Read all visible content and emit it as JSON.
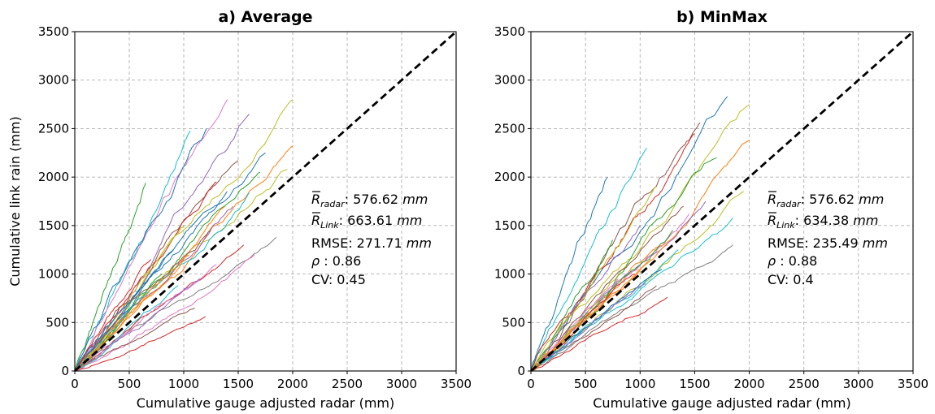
{
  "chart_data": [
    {
      "type": "line",
      "title": "a) Average",
      "xlabel": "Cumulative gauge adjusted radar (mm)",
      "ylabel": "Cumulative link rain (mm)",
      "xlim": [
        0,
        3500
      ],
      "ylim": [
        0,
        3500
      ],
      "xticks": [
        "0",
        "500",
        "1000",
        "1500",
        "2000",
        "2500",
        "3000",
        "3500"
      ],
      "yticks": [
        "0",
        "500",
        "1000",
        "1500",
        "2000",
        "2500",
        "3000",
        "3500"
      ],
      "grid": true,
      "reference_line": {
        "x": [
          0,
          3500
        ],
        "y": [
          0,
          3500
        ],
        "style": "dashed",
        "color": "#000000"
      },
      "annotations": {
        "r_radar": {
          "symbol": "R",
          "sub": "radar",
          "value": ": 576.62 ",
          "unit": "mm"
        },
        "r_link": {
          "symbol": "R",
          "sub": "Link",
          "value": ": 663.61 ",
          "unit": "mm"
        },
        "rmse": {
          "text": "RMSE: 271.71 ",
          "unit": "mm"
        },
        "rho": {
          "symbol": "ρ",
          "text": " : 0.86"
        },
        "cv": "CV: 0.45"
      },
      "series": [
        {
          "end": [
            1060,
            2480
          ],
          "color": "#17becf"
        },
        {
          "end": [
            1400,
            2800
          ],
          "color": "#e377c2"
        },
        {
          "end": [
            1210,
            2500
          ],
          "color": "#1f77b4"
        },
        {
          "end": [
            1600,
            2650
          ],
          "color": "#9467bd"
        },
        {
          "end": [
            2000,
            2800
          ],
          "color": "#bcbd22"
        },
        {
          "end": [
            1750,
            2250
          ],
          "color": "#1f77b4"
        },
        {
          "end": [
            2000,
            2320
          ],
          "color": "#ff7f0e"
        },
        {
          "end": [
            1500,
            2170
          ],
          "color": "#8c564b"
        },
        {
          "end": [
            1700,
            2050
          ],
          "color": "#2ca02c"
        },
        {
          "end": [
            1950,
            2080
          ],
          "color": "#bcbd22"
        },
        {
          "end": [
            1300,
            1950
          ],
          "color": "#d62728"
        },
        {
          "end": [
            1600,
            1840
          ],
          "color": "#17becf"
        },
        {
          "end": [
            1450,
            1700
          ],
          "color": "#9467bd"
        },
        {
          "end": [
            1850,
            1380
          ],
          "color": "#7f7f7f"
        },
        {
          "end": [
            1650,
            1200
          ],
          "color": "#e377c2"
        },
        {
          "end": [
            1550,
            1300
          ],
          "color": "#d62728"
        },
        {
          "end": [
            1100,
            650
          ],
          "color": "#8c564b"
        },
        {
          "end": [
            1200,
            560
          ],
          "color": "#d62728"
        },
        {
          "end": [
            650,
            1940
          ],
          "color": "#2ca02c"
        },
        {
          "end": [
            1380,
            1700
          ],
          "color": "#ff7f0e"
        },
        {
          "end": [
            1000,
            1500
          ],
          "color": "#bcbd22"
        },
        {
          "end": [
            900,
            1250
          ],
          "color": "#1f77b4"
        },
        {
          "end": [
            1300,
            1100
          ],
          "color": "#e377c2"
        },
        {
          "end": [
            800,
            1000
          ],
          "color": "#2ca02c"
        },
        {
          "end": [
            1150,
            950
          ],
          "color": "#9467bd"
        },
        {
          "end": [
            1050,
            1200
          ],
          "color": "#ff7f0e"
        },
        {
          "end": [
            950,
            880
          ],
          "color": "#17becf"
        },
        {
          "end": [
            1250,
            1450
          ],
          "color": "#8c564b"
        },
        {
          "end": [
            700,
            1150
          ],
          "color": "#d62728"
        },
        {
          "end": [
            1400,
            1850
          ],
          "color": "#1f77b4"
        }
      ]
    },
    {
      "type": "line",
      "title": "b) MinMax",
      "xlabel": "Cumulative gauge adjusted radar (mm)",
      "ylabel": "",
      "xlim": [
        0,
        3500
      ],
      "ylim": [
        0,
        3500
      ],
      "xticks": [
        "0",
        "500",
        "1000",
        "1500",
        "2000",
        "2500",
        "3000",
        "3500"
      ],
      "yticks": [
        "0",
        "500",
        "1000",
        "1500",
        "2000",
        "2500",
        "3000",
        "3500"
      ],
      "grid": true,
      "reference_line": {
        "x": [
          0,
          3500
        ],
        "y": [
          0,
          3500
        ],
        "style": "dashed",
        "color": "#000000"
      },
      "annotations": {
        "r_radar": {
          "symbol": "R",
          "sub": "radar",
          "value": ": 576.62 ",
          "unit": "mm"
        },
        "r_link": {
          "symbol": "R",
          "sub": "Link",
          "value": ": 634.38 ",
          "unit": "mm"
        },
        "rmse": {
          "text": "RMSE: 235.49 ",
          "unit": "mm"
        },
        "rho": {
          "symbol": "ρ",
          "text": " : 0.88"
        },
        "cv": "CV: 0.4"
      },
      "series": [
        {
          "end": [
            1060,
            2300
          ],
          "color": "#17becf"
        },
        {
          "end": [
            1800,
            2830
          ],
          "color": "#1f77b4"
        },
        {
          "end": [
            2000,
            2750
          ],
          "color": "#bcbd22"
        },
        {
          "end": [
            1550,
            2560
          ],
          "color": "#8c564b"
        },
        {
          "end": [
            2000,
            2380
          ],
          "color": "#ff7f0e"
        },
        {
          "end": [
            1500,
            2450
          ],
          "color": "#d62728"
        },
        {
          "end": [
            1700,
            2200
          ],
          "color": "#2ca02c"
        },
        {
          "end": [
            1950,
            1850
          ],
          "color": "#bcbd22"
        },
        {
          "end": [
            1850,
            1580
          ],
          "color": "#17becf"
        },
        {
          "end": [
            1850,
            1300
          ],
          "color": "#7f7f7f"
        },
        {
          "end": [
            1600,
            1750
          ],
          "color": "#9467bd"
        },
        {
          "end": [
            1450,
            1620
          ],
          "color": "#e377c2"
        },
        {
          "end": [
            1250,
            760
          ],
          "color": "#d62728"
        },
        {
          "end": [
            1150,
            880
          ],
          "color": "#8c564b"
        },
        {
          "end": [
            700,
            2000
          ],
          "color": "#1f77b4"
        },
        {
          "end": [
            1300,
            1450
          ],
          "color": "#2ca02c"
        },
        {
          "end": [
            1000,
            1500
          ],
          "color": "#9467bd"
        },
        {
          "end": [
            1100,
            1150
          ],
          "color": "#ff7f0e"
        },
        {
          "end": [
            900,
            1100
          ],
          "color": "#bcbd22"
        },
        {
          "end": [
            1350,
            1250
          ],
          "color": "#17becf"
        },
        {
          "end": [
            800,
            950
          ],
          "color": "#e377c2"
        },
        {
          "end": [
            1200,
            1050
          ],
          "color": "#1f77b4"
        },
        {
          "end": [
            950,
            1000
          ],
          "color": "#d62728"
        },
        {
          "end": [
            1400,
            1700
          ],
          "color": "#8c564b"
        },
        {
          "end": [
            750,
            1350
          ],
          "color": "#2ca02c"
        },
        {
          "end": [
            1050,
            900
          ],
          "color": "#9467bd"
        },
        {
          "end": [
            1250,
            1300
          ],
          "color": "#ff7f0e"
        },
        {
          "end": [
            1150,
            1900
          ],
          "color": "#bcbd22"
        }
      ]
    }
  ]
}
